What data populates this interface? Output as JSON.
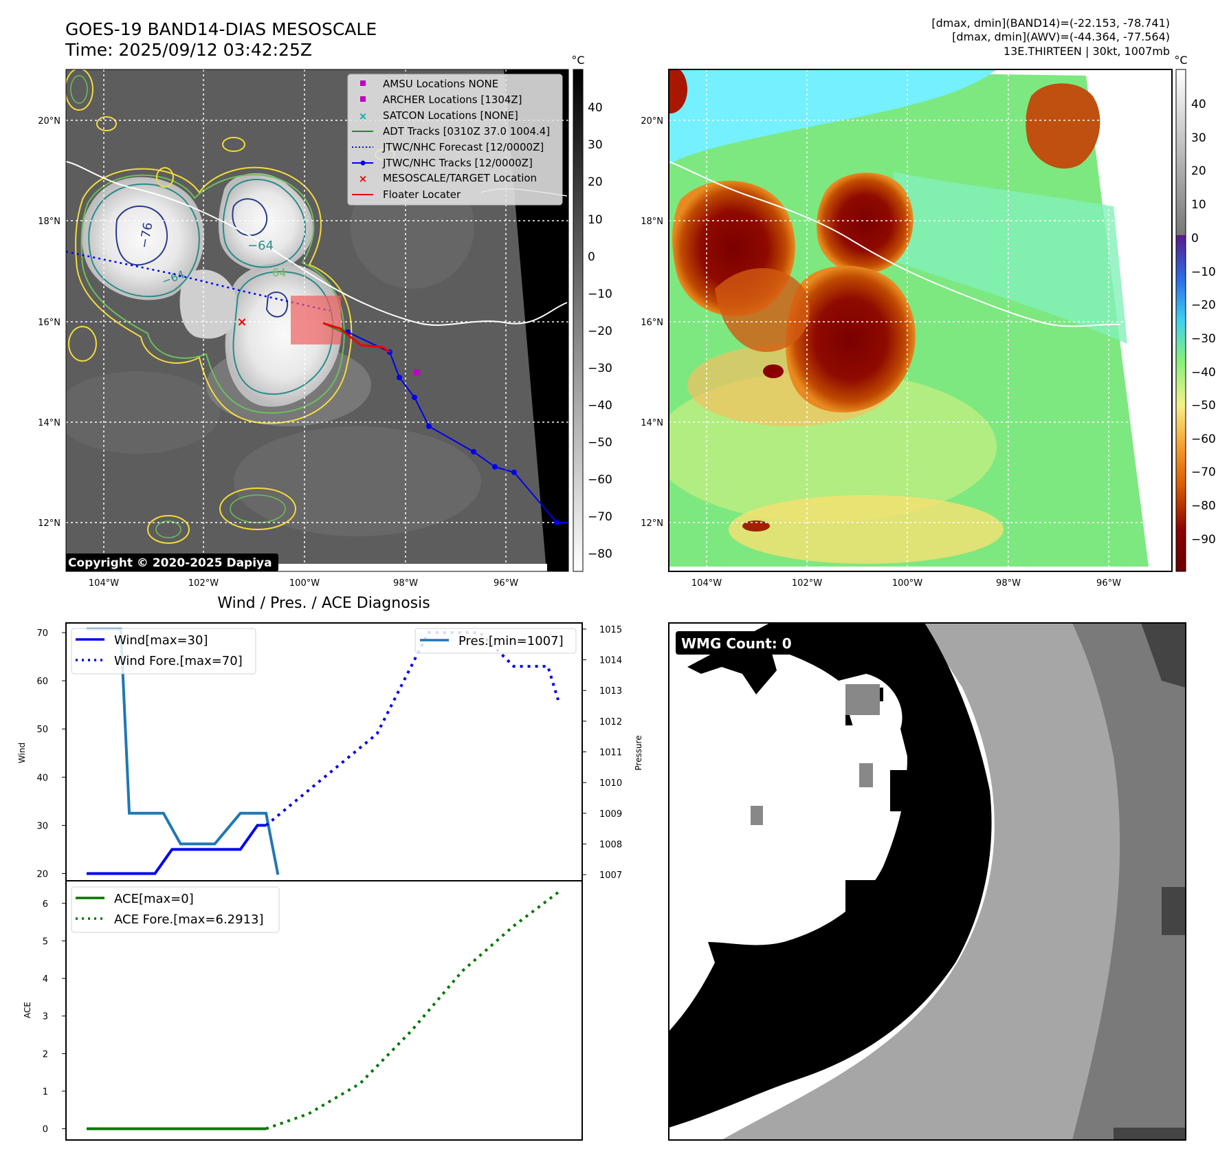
{
  "header": {
    "title": "GOES-19 BAND14-DIAS MESOSCALE",
    "time": "Time: 2025/09/12 03:42:25Z",
    "stats1": "[dmax, dmin](BAND14)=(-22.153, -78.741)",
    "stats2": "[dmax, dmin](AWV)=(-44.364, -77.564)",
    "storm": "13E.THIRTEEN | 30kt, 1007mb"
  },
  "colors": {
    "wind": "#0000ee",
    "pressure": "#1f77b4",
    "ace": "#007700",
    "track_forecast": "#0000ff",
    "adt": "#228b22",
    "floater": "#ee0000",
    "archer": "#c000c0",
    "satcon": "#00b0b0"
  },
  "map": {
    "lat_ticks": [
      "20°N",
      "18°N",
      "16°N",
      "14°N",
      "12°N"
    ],
    "lon_ticks": [
      "104°W",
      "102°W",
      "100°W",
      "98°W",
      "96°W"
    ],
    "colorbar_unit": "°C",
    "ir_ticks": [
      "40",
      "30",
      "20",
      "10",
      "0",
      "−10",
      "−20",
      "−30",
      "−40",
      "−50",
      "−60",
      "−70",
      "−80"
    ],
    "awv_ticks": [
      "40",
      "30",
      "20",
      "10",
      "0",
      "−10",
      "−20",
      "−30",
      "−40",
      "−50",
      "−60",
      "−70",
      "−80",
      "−90"
    ],
    "contour_labels": [
      "−76",
      "−64",
      "−64",
      "64"
    ],
    "copyright": "Copyright © 2020-2025 Dapiya",
    "legend": [
      {
        "label": "AMSU Locations NONE",
        "icon": "square-marker"
      },
      {
        "label": "ARCHER Locations [1304Z]",
        "icon": "square-marker"
      },
      {
        "label": "SATCON Locations [NONE]",
        "icon": "x-marker"
      },
      {
        "label": "ADT Tracks [0310Z 37.0 1004.4]",
        "icon": "solid-line"
      },
      {
        "label": "JTWC/NHC Forecast [12/0000Z]",
        "icon": "dotted-line"
      },
      {
        "label": "JTWC/NHC Tracks [12/0000Z]",
        "icon": "line-dot"
      },
      {
        "label": "MESOSCALE/TARGET Location",
        "icon": "x-marker"
      },
      {
        "label": "Floater Locater",
        "icon": "solid-line"
      }
    ]
  },
  "wmg": {
    "label": "WMG Count: 0"
  },
  "chart_data": [
    {
      "type": "line",
      "title": "Wind / Pres. / ACE Diagnosis",
      "ylabel": "Wind",
      "y2label": "Pressure",
      "ylim": [
        18.5,
        72
      ],
      "y2lim": [
        1006.8,
        1015.2
      ],
      "yticks": [
        20,
        30,
        40,
        50,
        60,
        70
      ],
      "y2ticks": [
        1007,
        1008,
        1009,
        1010,
        1011,
        1012,
        1013,
        1014,
        1015
      ],
      "series": [
        {
          "name": "Wind[max=30]",
          "x": [
            0,
            4,
            5,
            9,
            10,
            10.5
          ],
          "values": [
            20,
            20,
            25,
            25,
            30,
            30
          ]
        },
        {
          "name": "Wind Fore.[max=70]",
          "x": [
            10.5,
            17,
            20,
            23,
            25,
            27,
            27.6
          ],
          "values": [
            30,
            49,
            70,
            70,
            63,
            63,
            56
          ]
        },
        {
          "name": "Pres.[min=1007]",
          "axis": "right",
          "x": [
            0,
            2,
            2.5,
            4.5,
            5.5,
            7.5,
            9,
            10.5,
            11.2
          ],
          "values": [
            1015,
            1015,
            1009,
            1009,
            1008,
            1008,
            1009,
            1009,
            1007
          ]
        }
      ]
    },
    {
      "type": "line",
      "ylabel": "ACE",
      "ylim": [
        -0.3,
        6.6
      ],
      "yticks": [
        0,
        1,
        2,
        3,
        4,
        5,
        6
      ],
      "series": [
        {
          "name": "ACE[max=0]",
          "x": [
            0,
            10.5
          ],
          "values": [
            0,
            0
          ]
        },
        {
          "name": "ACE Fore.[max=6.2913]",
          "x": [
            10.5,
            13,
            16,
            19,
            22,
            25,
            27.6
          ],
          "values": [
            0,
            0.4,
            1.2,
            2.6,
            4.2,
            5.4,
            6.29
          ]
        }
      ]
    }
  ]
}
